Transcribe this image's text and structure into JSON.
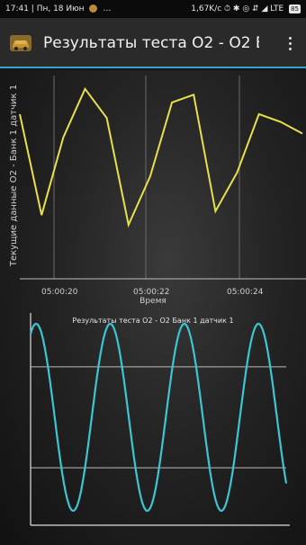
{
  "status_bar": {
    "left": "17:41 | Пн, 18 Июн",
    "left_extra": "…",
    "right": "1,67K/с ⏱ ✱ ◎ ⇵ ◢ LTE",
    "battery": "85"
  },
  "app_bar": {
    "title": "Результаты теста O2 - O2 Б...",
    "icon": "car-icon",
    "menu_icon": "more-vert-icon"
  },
  "colors": {
    "accent": "#2fa6c8",
    "yellow_line": "#e8e04a",
    "cyan_line": "#3cc6d4"
  },
  "chart_data": [
    {
      "type": "line",
      "ylabel": "Текущие данные О2 - Банк 1 датчик 1",
      "xlabel": "Время",
      "x_ticks": [
        "05:00:20",
        "05:00:22",
        "05:00:24"
      ],
      "series": [
        {
          "points": [
            [
              0,
              0.82
            ],
            [
              1,
              0.3
            ],
            [
              2,
              0.7
            ],
            [
              3,
              0.95
            ],
            [
              4,
              0.8
            ],
            [
              5,
              0.25
            ],
            [
              6,
              0.5
            ],
            [
              7,
              0.88
            ],
            [
              8,
              0.92
            ],
            [
              9,
              0.32
            ],
            [
              10,
              0.52
            ],
            [
              11,
              0.82
            ],
            [
              12,
              0.78
            ],
            [
              13,
              0.72
            ]
          ]
        }
      ]
    },
    {
      "type": "line",
      "title": "Результаты теста O2 - O2 Банк 1 датчик 1",
      "reference_lines": [
        0.8,
        0.2
      ],
      "series": [
        {
          "cycles": 3.45,
          "amplitude": 0.75,
          "offset": 0.05
        }
      ]
    }
  ]
}
